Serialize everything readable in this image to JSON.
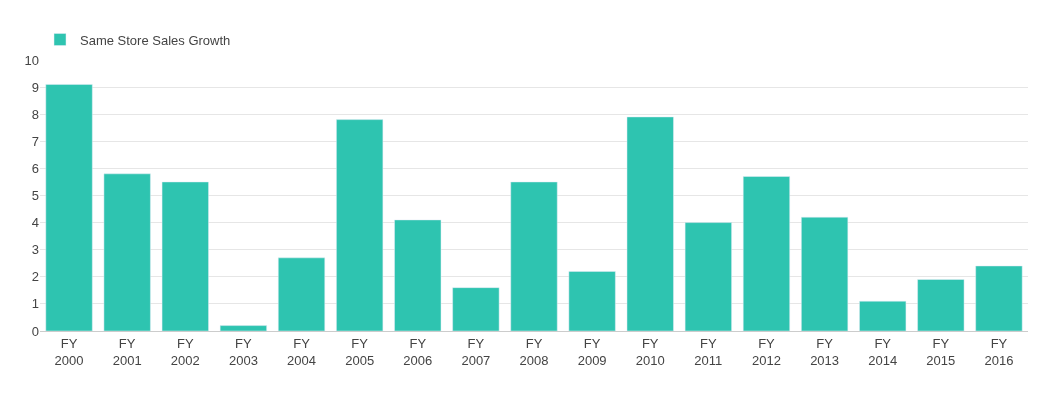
{
  "chart_data": {
    "type": "bar",
    "categories": [
      "FY\n2000",
      "FY\n2001",
      "FY\n2002",
      "FY\n2003",
      "FY\n2004",
      "FY\n2005",
      "FY\n2006",
      "FY\n2007",
      "FY\n2008",
      "FY\n2009",
      "FY\n2010",
      "FY\n2011",
      "FY\n2012",
      "FY\n2013",
      "FY\n2014",
      "FY\n2015",
      "FY\n2016"
    ],
    "series": [
      {
        "name": "Same Store Sales Growth",
        "color": "#2ec4b0",
        "values": [
          9.1,
          5.8,
          5.5,
          0.2,
          2.7,
          7.8,
          4.1,
          1.6,
          5.5,
          2.2,
          7.9,
          4.0,
          5.7,
          4.2,
          1.1,
          1.9,
          2.4
        ]
      }
    ],
    "ylim": [
      0,
      10
    ],
    "yticks": [
      0,
      1,
      2,
      3,
      4,
      5,
      6,
      7,
      8,
      9,
      10
    ],
    "grid": "y",
    "legend": "top left"
  }
}
